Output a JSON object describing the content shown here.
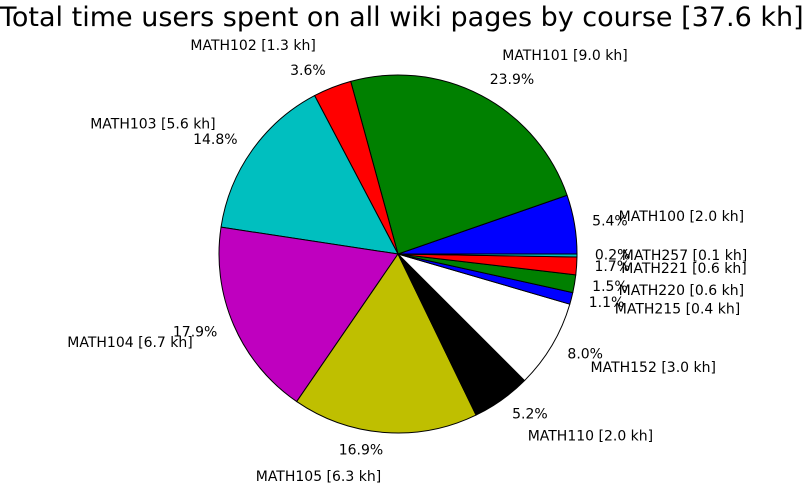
{
  "chart_data": {
    "type": "pie",
    "title": "Total time users spent on all wiki pages by course  [37.6 kh]",
    "start_angle_deg": 0,
    "direction": "counterclockwise",
    "slices": [
      {
        "label": "MATH100 [2.0 kh]",
        "value": 2.0,
        "percent_label": "5.4%",
        "color": "#0000ff"
      },
      {
        "label": "MATH101 [9.0 kh]",
        "value": 9.0,
        "percent_label": "23.9%",
        "color": "#008000"
      },
      {
        "label": "MATH102 [1.3 kh]",
        "value": 1.3,
        "percent_label": "3.6%",
        "color": "#ff0000"
      },
      {
        "label": "MATH103 [5.6 kh]",
        "value": 5.6,
        "percent_label": "14.8%",
        "color": "#00bfbf"
      },
      {
        "label": "MATH104 [6.7 kh]",
        "value": 6.7,
        "percent_label": "17.9%",
        "color": "#bf00bf"
      },
      {
        "label": "MATH105 [6.3 kh]",
        "value": 6.3,
        "percent_label": "16.9%",
        "color": "#bfbf00"
      },
      {
        "label": "MATH110 [2.0 kh]",
        "value": 2.0,
        "percent_label": "5.2%",
        "color": "#000000"
      },
      {
        "label": "MATH152 [3.0 kh]",
        "value": 3.0,
        "percent_label": "8.0%",
        "color": "#ffffff"
      },
      {
        "label": "MATH215 [0.4 kh]",
        "value": 0.4,
        "percent_label": "1.1%",
        "color": "#0000ff"
      },
      {
        "label": "MATH220 [0.6 kh]",
        "value": 0.6,
        "percent_label": "1.5%",
        "color": "#008000"
      },
      {
        "label": "MATH221 [0.6 kh]",
        "value": 0.6,
        "percent_label": "1.7%",
        "color": "#ff0000"
      },
      {
        "label": "MATH257 [0.1 kh]",
        "value": 0.1,
        "percent_label": "0.2%",
        "color": "#00bfbf"
      }
    ]
  }
}
